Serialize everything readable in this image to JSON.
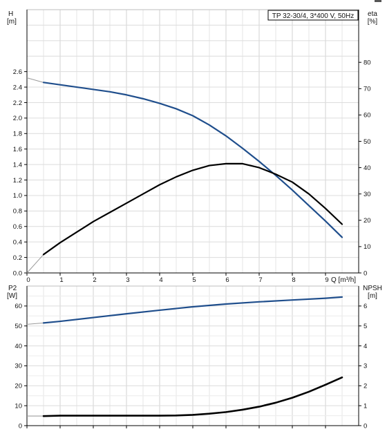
{
  "chart_data": [
    {
      "type": "line",
      "title": "TP 32-30/4, 3*400 V, 50Hz",
      "xlabel": "Q [m³/h]",
      "ylabel_left": [
        "H",
        "[m]"
      ],
      "ylabel_right": [
        "eta",
        "[%]"
      ],
      "xlim": [
        0,
        10
      ],
      "ylim_left": [
        0,
        3.4
      ],
      "ylim_right": [
        0,
        100
      ],
      "x_ticks": [
        "0",
        "1",
        "2",
        "3",
        "4",
        "5",
        "6",
        "7",
        "8",
        "9"
      ],
      "y_left_ticks": [
        "0.0",
        "0.2",
        "0.4",
        "0.6",
        "0.8",
        "1.0",
        "1.2",
        "1.4",
        "1.6",
        "1.8",
        "2.0",
        "2.2",
        "2.4",
        "2.6"
      ],
      "y_right_ticks": [
        "0",
        "10",
        "20",
        "30",
        "40",
        "50",
        "60",
        "70",
        "80"
      ],
      "grid": true,
      "series": [
        {
          "color": "#1f4e8c",
          "axis": "left",
          "x": [
            0.5,
            1,
            1.5,
            2,
            2.5,
            3,
            3.5,
            4,
            4.5,
            5,
            5.5,
            6,
            6.5,
            7,
            7.5,
            8,
            8.5,
            9,
            9.5
          ],
          "y": [
            2.46,
            2.43,
            2.4,
            2.37,
            2.34,
            2.3,
            2.25,
            2.19,
            2.12,
            2.03,
            1.91,
            1.77,
            1.61,
            1.44,
            1.26,
            1.07,
            0.87,
            0.67,
            0.46
          ],
          "extension": {
            "x": [
              0,
              0.5
            ],
            "y": [
              2.52,
              2.46
            ]
          }
        },
        {
          "color": "#000000",
          "axis": "right",
          "x": [
            0.5,
            1,
            1.5,
            2,
            2.5,
            3,
            3.5,
            4,
            4.5,
            5,
            5.5,
            6,
            6.5,
            7,
            7.5,
            8,
            8.5,
            9,
            9.5
          ],
          "y": [
            7,
            11.5,
            15.5,
            19.5,
            23,
            26.5,
            30,
            33.5,
            36.5,
            39,
            40.8,
            41.5,
            41.5,
            40,
            37.5,
            34.5,
            30,
            24.5,
            18.5
          ],
          "extension": {
            "x": [
              0,
              0.5
            ],
            "y": [
              0,
              7
            ]
          }
        }
      ]
    },
    {
      "type": "line",
      "xlabel": "",
      "ylabel_left": [
        "P2",
        "[W]"
      ],
      "ylabel_right": [
        "NPSH",
        "[m]"
      ],
      "xlim": [
        0,
        10
      ],
      "ylim_left": [
        0,
        70
      ],
      "ylim_right": [
        0,
        7
      ],
      "y_left_ticks": [
        "0",
        "10",
        "20",
        "30",
        "40",
        "50",
        "60"
      ],
      "y_right_ticks": [
        "0",
        "1",
        "2",
        "3",
        "4",
        "5",
        "6"
      ],
      "grid": true,
      "series": [
        {
          "color": "#1f4e8c",
          "axis": "left",
          "x": [
            0.5,
            1,
            2,
            3,
            4,
            5,
            6,
            7,
            8,
            9,
            9.5
          ],
          "y": [
            51.5,
            52.3,
            54.2,
            56.1,
            57.9,
            59.6,
            61.0,
            62.1,
            63.0,
            63.9,
            64.5
          ],
          "extension": {
            "x": [
              0,
              0.5
            ],
            "y": [
              50.8,
              51.5
            ]
          }
        },
        {
          "color": "#000000",
          "axis": "right",
          "x": [
            0.5,
            1,
            2,
            3,
            4,
            4.5,
            5,
            5.5,
            6,
            6.5,
            7,
            7.5,
            8,
            8.5,
            9,
            9.5
          ],
          "y": [
            0.48,
            0.5,
            0.5,
            0.5,
            0.5,
            0.51,
            0.54,
            0.6,
            0.68,
            0.8,
            0.95,
            1.15,
            1.4,
            1.7,
            2.05,
            2.42
          ],
          "extension": {
            "x": [
              0,
              0.5
            ],
            "y": [
              0.48,
              0.48
            ]
          }
        }
      ]
    }
  ]
}
